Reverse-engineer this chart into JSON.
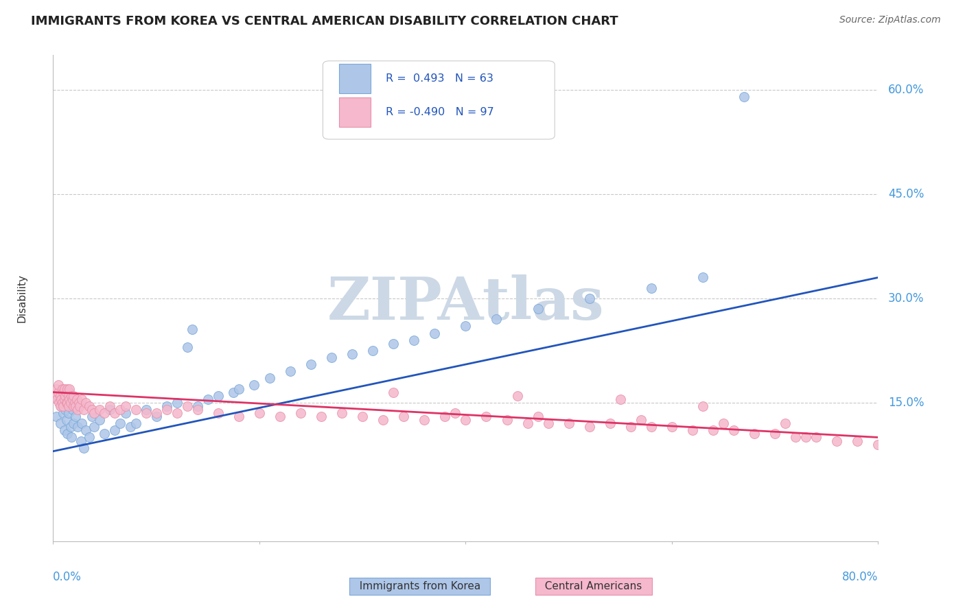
{
  "title": "IMMIGRANTS FROM KOREA VS CENTRAL AMERICAN DISABILITY CORRELATION CHART",
  "source": "Source: ZipAtlas.com",
  "ylabel": "Disability",
  "watermark": "ZIPAtlas",
  "xlim": [
    0.0,
    80.0
  ],
  "ylim": [
    -5.0,
    65.0
  ],
  "right_yticks": [
    15.0,
    30.0,
    45.0,
    60.0
  ],
  "grid_lines": [
    15.0,
    30.0,
    45.0,
    60.0
  ],
  "korea_color": "#aec6e8",
  "korea_edge": "#7aa8d8",
  "central_color": "#f5b8cc",
  "central_edge": "#e890a8",
  "line_korea_color": "#2255bb",
  "line_central_color": "#dd3366",
  "background_color": "#ffffff",
  "title_color": "#222222",
  "axis_label_color": "#4499dd",
  "watermark_color": "#ccd8e5",
  "legend_r_color": "#2255bb",
  "legend_r2_color": "#dd3366",
  "line_korea_x0": 0.0,
  "line_korea_y0": 8.0,
  "line_korea_x1": 80.0,
  "line_korea_y1": 33.0,
  "line_central_x0": 0.0,
  "line_central_y0": 16.5,
  "line_central_x1": 80.0,
  "line_central_y1": 10.0
}
